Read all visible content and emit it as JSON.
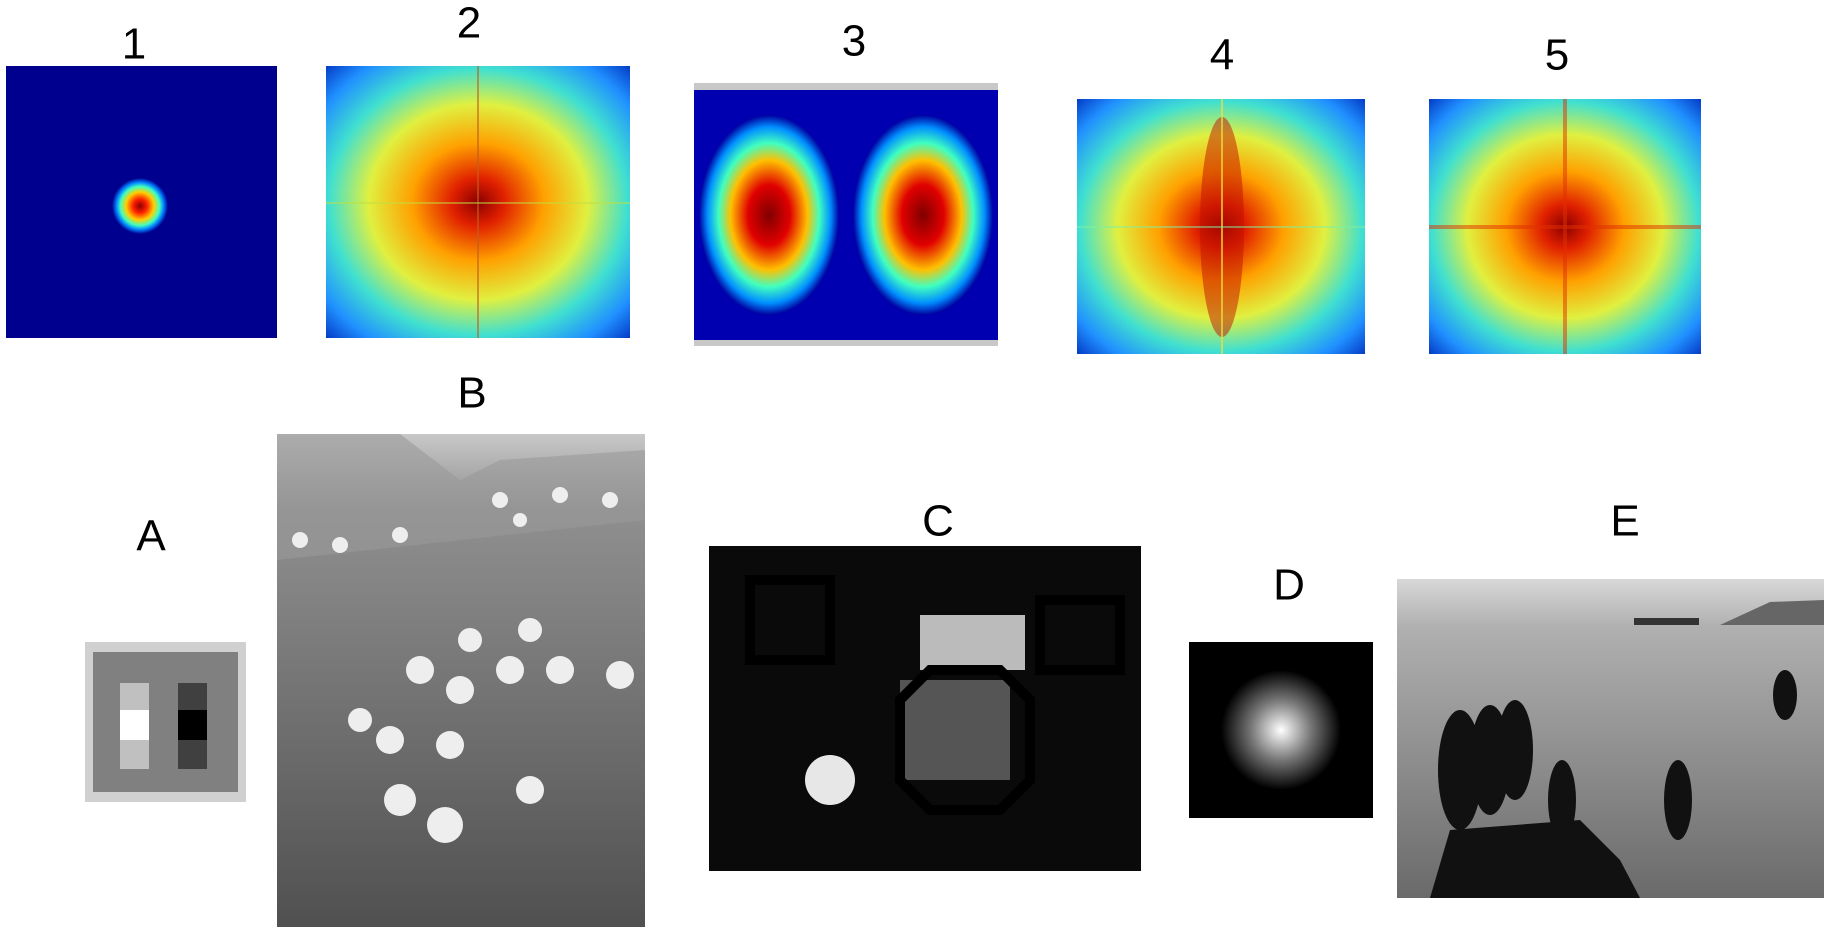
{
  "top_row": [
    {
      "label": "1"
    },
    {
      "label": "2"
    },
    {
      "label": "3"
    },
    {
      "label": "4"
    },
    {
      "label": "5"
    }
  ],
  "bottom_row": [
    {
      "label": "A"
    },
    {
      "label": "B"
    },
    {
      "label": "C"
    },
    {
      "label": "D"
    },
    {
      "label": "E"
    }
  ]
}
